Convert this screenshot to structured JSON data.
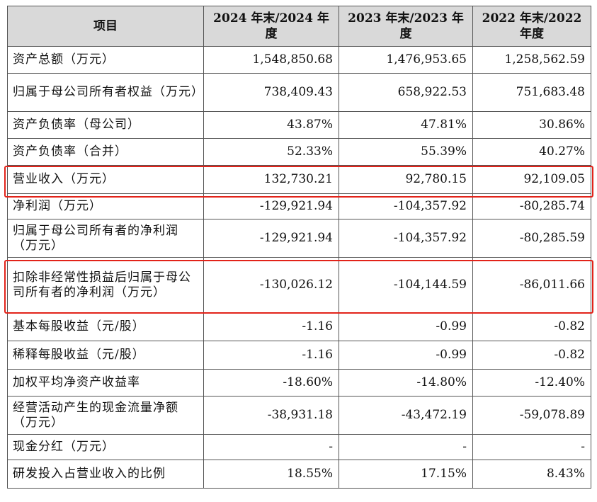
{
  "table": {
    "headers": [
      "项目",
      "2024 年末/2024 年度",
      "2023 年末/2023 年度",
      "2022 年末/2022 年度"
    ],
    "rows": [
      {
        "label": "资产总额（万元）",
        "v2024": "1,548,850.68",
        "v2023": "1,476,953.65",
        "v2022": "1,258,562.59"
      },
      {
        "label": "归属于母公司所有者权益（万元）",
        "v2024": "738,409.43",
        "v2023": "658,922.53",
        "v2022": "751,683.48"
      },
      {
        "label": "资产负债率（母公司）",
        "v2024": "43.87%",
        "v2023": "47.81%",
        "v2022": "30.86%"
      },
      {
        "label": "资产负债率（合并）",
        "v2024": "52.33%",
        "v2023": "55.39%",
        "v2022": "40.27%"
      },
      {
        "label": "营业收入（万元）",
        "v2024": "132,730.21",
        "v2023": "92,780.15",
        "v2022": "92,109.05"
      },
      {
        "label": "净利润（万元）",
        "v2024": "-129,921.94",
        "v2023": "-104,357.92",
        "v2022": "-80,285.74"
      },
      {
        "label": "归属于母公司所有者的净利润（万元）",
        "v2024": "-129,921.94",
        "v2023": "-104,357.92",
        "v2022": "-80,285.59"
      },
      {
        "label": "扣除非经常性损益后归属于母公司所有者的净利润（万元）",
        "v2024": "-130,026.12",
        "v2023": "-104,144.59",
        "v2022": "-86,011.66"
      },
      {
        "label": "基本每股收益（元/股）",
        "v2024": "-1.16",
        "v2023": "-0.99",
        "v2022": "-0.82"
      },
      {
        "label": "稀释每股收益（元/股）",
        "v2024": "-1.16",
        "v2023": "-0.99",
        "v2022": "-0.82"
      },
      {
        "label": "加权平均净资产收益率",
        "v2024": "-18.60%",
        "v2023": "-14.80%",
        "v2022": "-12.40%"
      },
      {
        "label": "经营活动产生的现金流量净额（万元）",
        "v2024": "-38,931.18",
        "v2023": "-43,472.19",
        "v2022": "-59,078.89"
      },
      {
        "label": "现金分红（万元）",
        "v2024": "-",
        "v2023": "-",
        "v2022": "-"
      },
      {
        "label": "研发投入占营业收入的比例",
        "v2024": "18.55%",
        "v2023": "17.15%",
        "v2022": "8.43%"
      }
    ]
  },
  "highlight_color": "#e2231a",
  "header_bg": "#d9d9d9"
}
